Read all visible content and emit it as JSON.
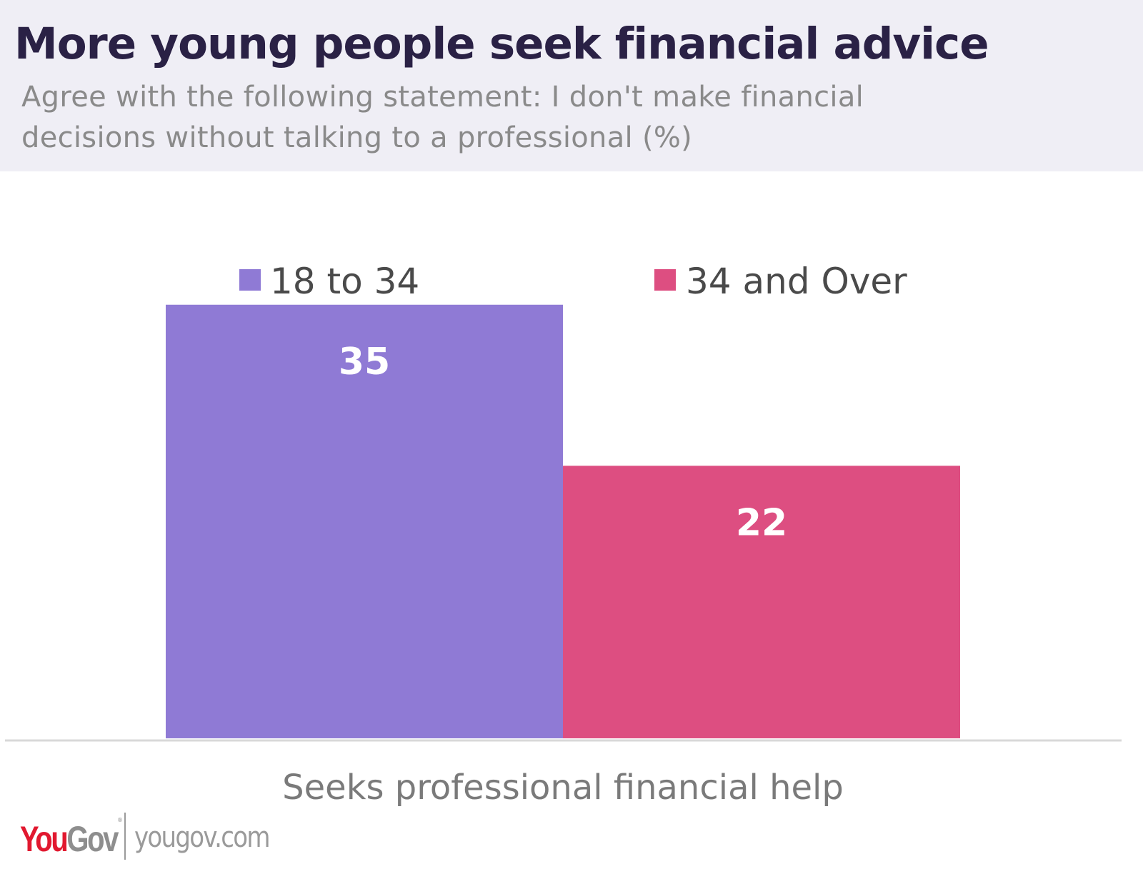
{
  "header": {
    "title": "More young people seek financial advice",
    "subtitle": "Agree with the following statement: I don't make financial decisions without talking to a professional (%)"
  },
  "chart_data": {
    "type": "bar",
    "title": "More young people seek financial advice",
    "subtitle": "Agree with the following statement: I don't make financial decisions without talking to a professional (%)",
    "categories": [
      "Seeks professional financial help"
    ],
    "series": [
      {
        "name": "18 to 34",
        "values": [
          35
        ],
        "color": "#8f7ad5"
      },
      {
        "name": "34 and Over",
        "values": [
          22
        ],
        "color": "#dd4e81"
      }
    ],
    "ylim": [
      0,
      40
    ],
    "grid": false,
    "legend_position": "top",
    "data_labels": true
  },
  "footer": {
    "logo_part1": "You",
    "logo_part2": "Gov",
    "logo_mark": "®",
    "url": "yougov.com"
  },
  "colors": {
    "header_background": "#efeef5",
    "title": "#2a2145",
    "subtitle": "#8a8a8a",
    "baseline": "#d8d8d8",
    "logo_red": "#e1182f",
    "logo_grey": "#8e8e8e"
  }
}
